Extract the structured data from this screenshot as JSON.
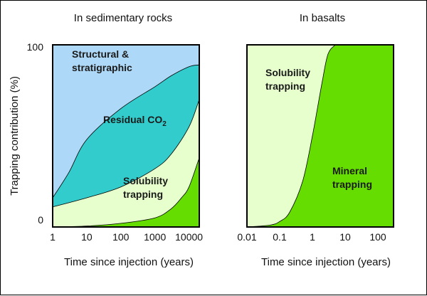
{
  "chart_data": [
    {
      "type": "area",
      "title": "In sedimentary rocks",
      "ylabel": "Trapping contribution (%)",
      "xlabel": "Time since injection (years)",
      "x_scale": "log",
      "xlim": [
        1,
        20000
      ],
      "ylim": [
        0,
        100
      ],
      "x_ticks": [
        "1",
        "10",
        "100",
        "1000",
        "10000"
      ],
      "y_ticks": [
        "0",
        "100"
      ],
      "stacking_order": [
        "Mineral trapping",
        "Solubility trapping",
        "Residual CO2",
        "Structural & stratigraphic"
      ],
      "boundaries": [
        {
          "between": "mineral|solubility",
          "x": [
            1,
            10,
            100,
            1000,
            3000,
            6000,
            10000,
            20000
          ],
          "y": [
            0,
            0.5,
            2,
            5,
            10,
            16,
            22,
            38
          ]
        },
        {
          "between": "solubility|residual",
          "x": [
            1,
            10,
            100,
            1000,
            3000,
            10000,
            20000
          ],
          "y": [
            11,
            16,
            22,
            32,
            40,
            55,
            70
          ]
        },
        {
          "between": "residual|structural",
          "x": [
            1,
            3,
            10,
            100,
            1000,
            3000,
            10000,
            20000
          ],
          "y": [
            16,
            30,
            48,
            65,
            77,
            83,
            88,
            89
          ]
        }
      ],
      "region_labels": [
        {
          "key": "structural",
          "lines": [
            "Structural &",
            "stratigraphic"
          ],
          "color": "#add8f7"
        },
        {
          "key": "residual",
          "text": "Residual CO",
          "sub": "2",
          "color": "#33cccc"
        },
        {
          "key": "solubility",
          "lines": [
            "Solubility",
            "trapping"
          ],
          "color": "#e6ffcc"
        },
        {
          "key": "mineral",
          "color": "#66dd00"
        }
      ]
    },
    {
      "type": "area",
      "title": "In basalts",
      "xlabel": "Time since injection (years)",
      "x_scale": "log",
      "xlim": [
        0.01,
        300
      ],
      "ylim": [
        0,
        100
      ],
      "x_ticks": [
        "0.01",
        "0.1",
        "1",
        "10",
        "100"
      ],
      "stacking_order": [
        "Mineral trapping",
        "Solubility trapping"
      ],
      "boundaries": [
        {
          "between": "mineral|solubility",
          "x": [
            0.01,
            0.05,
            0.1,
            0.2,
            0.5,
            1,
            2,
            3,
            5
          ],
          "y": [
            0,
            1,
            3,
            8,
            25,
            50,
            80,
            95,
            100
          ]
        }
      ],
      "region_labels": [
        {
          "key": "solubility",
          "lines": [
            "Solubility",
            "trapping"
          ],
          "color": "#e6ffcc"
        },
        {
          "key": "mineral",
          "lines": [
            "Mineral",
            "trapping"
          ],
          "color": "#66dd00"
        }
      ]
    }
  ]
}
